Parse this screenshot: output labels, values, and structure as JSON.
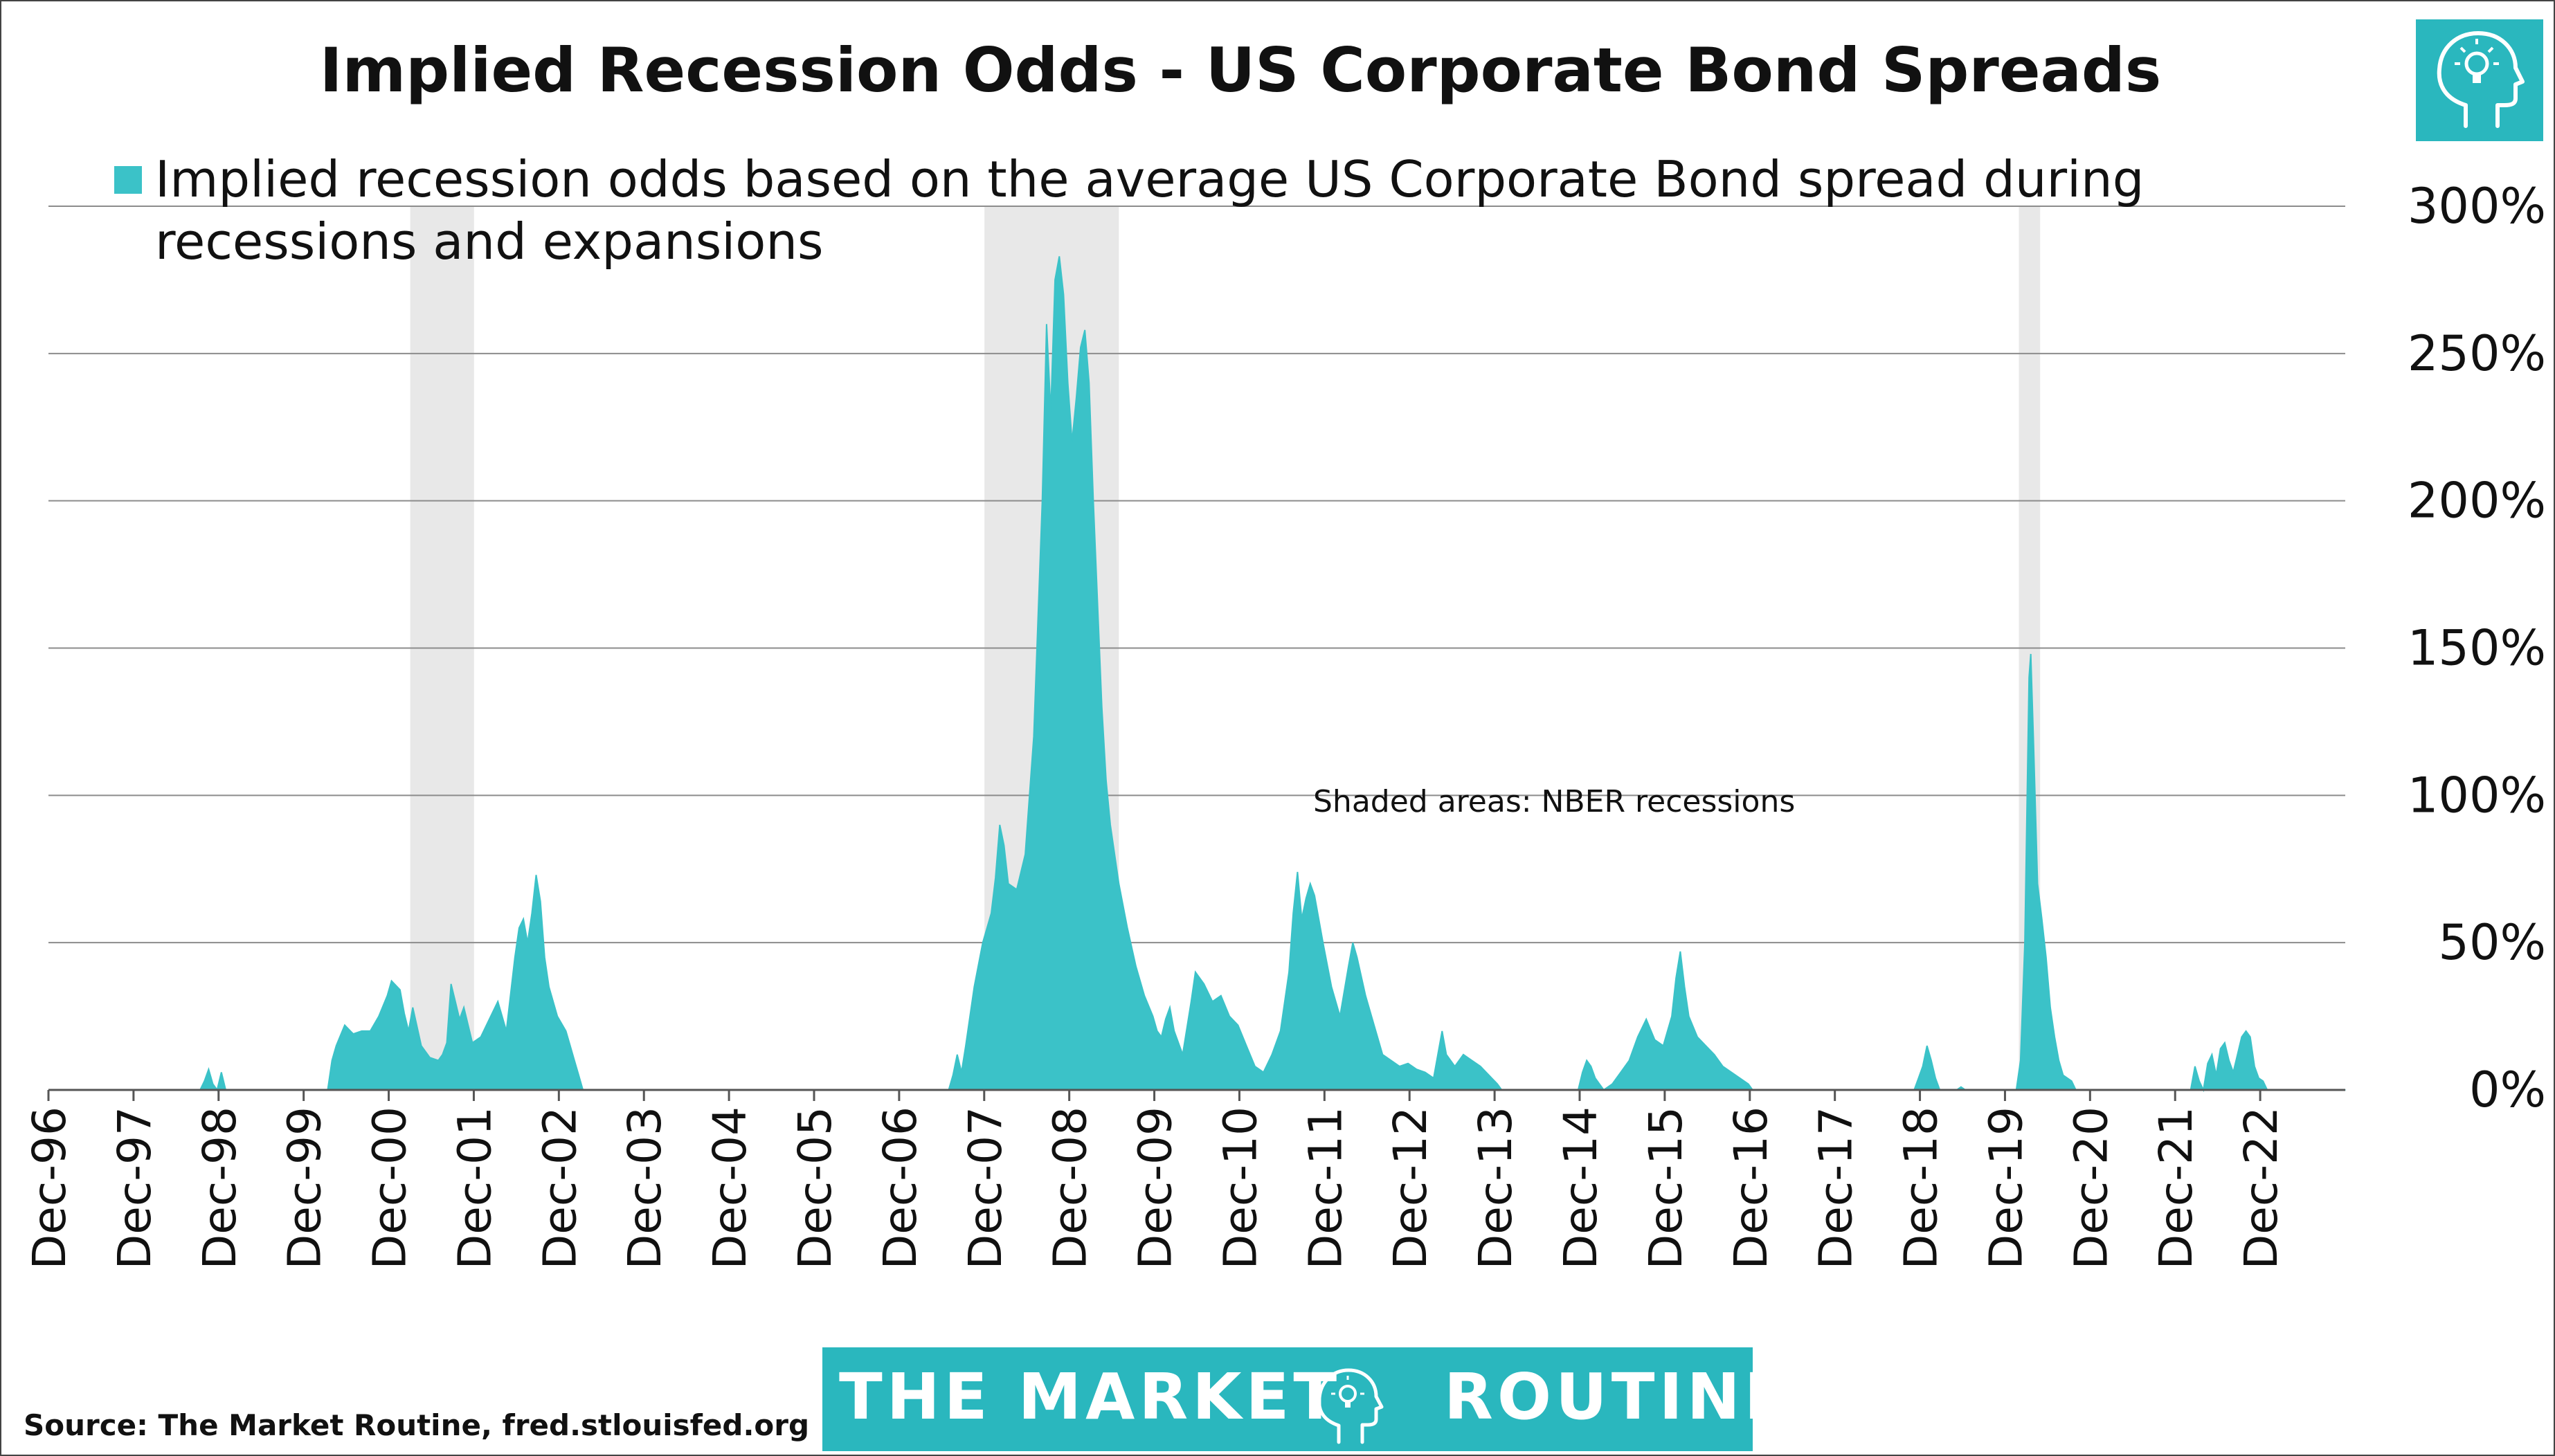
{
  "colors": {
    "series": "#3bc2c8",
    "recession": "#e8e8e8",
    "grid": "#8c8c8c",
    "brand_bg": "#2ab7be",
    "text": "#111111"
  },
  "icons": {
    "corner_logo": "lightbulb-head-icon",
    "brand_logo": "lightbulb-head-icon"
  },
  "footer": {
    "source": "Source: The Market Routine, fred.stlouisfed.org",
    "brand_left": "THE MARKET",
    "brand_right": "ROUTINE"
  },
  "chart_data": {
    "type": "area",
    "title": "Implied Recession Odds - US Corporate Bond Spreads",
    "legend": {
      "label_line1": "Implied recession odds based on the average US Corporate Bond spread during",
      "label_line2": "recessions and expansions",
      "placement": "top-left"
    },
    "annotation": "Shaded areas: NBER recessions",
    "y_axis": {
      "position": "right",
      "ylim": [
        0,
        300
      ],
      "ticks": [
        0,
        50,
        100,
        150,
        200,
        250,
        300
      ],
      "tick_labels": [
        "0%",
        "50%",
        "100%",
        "150%",
        "200%",
        "250%",
        "300%"
      ],
      "grid": true
    },
    "x_axis": {
      "xlim": [
        1996.917,
        2023.917
      ],
      "tick_positions": [
        1996.917,
        1997.917,
        1998.917,
        1999.917,
        2000.917,
        2001.917,
        2002.917,
        2003.917,
        2004.917,
        2005.917,
        2006.917,
        2007.917,
        2008.917,
        2009.917,
        2010.917,
        2011.917,
        2012.917,
        2013.917,
        2014.917,
        2015.917,
        2016.917,
        2017.917,
        2018.917,
        2019.917,
        2020.917,
        2021.917,
        2022.917
      ],
      "tick_labels": [
        "Dec-96",
        "Dec-97",
        "Dec-98",
        "Dec-99",
        "Dec-00",
        "Dec-01",
        "Dec-02",
        "Dec-03",
        "Dec-04",
        "Dec-05",
        "Dec-06",
        "Dec-07",
        "Dec-08",
        "Dec-09",
        "Dec-10",
        "Dec-11",
        "Dec-12",
        "Dec-13",
        "Dec-14",
        "Dec-15",
        "Dec-16",
        "Dec-17",
        "Dec-18",
        "Dec-19",
        "Dec-20",
        "Dec-21",
        "Dec-22"
      ]
    },
    "recessions": [
      {
        "start": 2001.17,
        "end": 2001.92
      },
      {
        "start": 2007.92,
        "end": 2009.5
      },
      {
        "start": 2020.08,
        "end": 2020.33
      }
    ],
    "series": [
      {
        "values": [
          [
            1996.92,
            0
          ],
          [
            1998.7,
            0
          ],
          [
            1998.75,
            3
          ],
          [
            1998.8,
            7
          ],
          [
            1998.85,
            2
          ],
          [
            1998.9,
            0
          ],
          [
            1998.95,
            6
          ],
          [
            1999.0,
            0
          ],
          [
            2000.2,
            0
          ],
          [
            2000.25,
            10
          ],
          [
            2000.3,
            15
          ],
          [
            2000.4,
            22
          ],
          [
            2000.5,
            19
          ],
          [
            2000.6,
            20
          ],
          [
            2000.7,
            20
          ],
          [
            2000.8,
            25
          ],
          [
            2000.9,
            32
          ],
          [
            2000.95,
            37
          ],
          [
            2001.05,
            34
          ],
          [
            2001.1,
            26
          ],
          [
            2001.15,
            20
          ],
          [
            2001.2,
            28
          ],
          [
            2001.3,
            15
          ],
          [
            2001.4,
            11
          ],
          [
            2001.5,
            10
          ],
          [
            2001.55,
            12
          ],
          [
            2001.6,
            16
          ],
          [
            2001.65,
            36
          ],
          [
            2001.7,
            30
          ],
          [
            2001.75,
            24
          ],
          [
            2001.8,
            28
          ],
          [
            2001.9,
            16
          ],
          [
            2002.0,
            18
          ],
          [
            2002.1,
            24
          ],
          [
            2002.2,
            30
          ],
          [
            2002.3,
            20
          ],
          [
            2002.4,
            45
          ],
          [
            2002.45,
            55
          ],
          [
            2002.5,
            58
          ],
          [
            2002.55,
            50
          ],
          [
            2002.6,
            60
          ],
          [
            2002.65,
            73
          ],
          [
            2002.7,
            64
          ],
          [
            2002.75,
            45
          ],
          [
            2002.8,
            35
          ],
          [
            2002.9,
            25
          ],
          [
            2003.0,
            20
          ],
          [
            2003.05,
            15
          ],
          [
            2003.1,
            10
          ],
          [
            2003.15,
            5
          ],
          [
            2003.2,
            0
          ],
          [
            2007.5,
            0
          ],
          [
            2007.55,
            5
          ],
          [
            2007.6,
            12
          ],
          [
            2007.65,
            6
          ],
          [
            2007.7,
            15
          ],
          [
            2007.8,
            35
          ],
          [
            2007.9,
            50
          ],
          [
            2008.0,
            60
          ],
          [
            2008.05,
            72
          ],
          [
            2008.1,
            90
          ],
          [
            2008.15,
            83
          ],
          [
            2008.2,
            70
          ],
          [
            2008.3,
            68
          ],
          [
            2008.4,
            80
          ],
          [
            2008.5,
            120
          ],
          [
            2008.6,
            200
          ],
          [
            2008.65,
            260
          ],
          [
            2008.7,
            230
          ],
          [
            2008.75,
            275
          ],
          [
            2008.8,
            283
          ],
          [
            2008.85,
            270
          ],
          [
            2008.9,
            240
          ],
          [
            2008.95,
            220
          ],
          [
            2009.0,
            235
          ],
          [
            2009.05,
            252
          ],
          [
            2009.1,
            258
          ],
          [
            2009.15,
            240
          ],
          [
            2009.2,
            200
          ],
          [
            2009.3,
            130
          ],
          [
            2009.35,
            105
          ],
          [
            2009.4,
            90
          ],
          [
            2009.5,
            70
          ],
          [
            2009.6,
            55
          ],
          [
            2009.7,
            42
          ],
          [
            2009.8,
            32
          ],
          [
            2009.9,
            25
          ],
          [
            2009.95,
            20
          ],
          [
            2010.0,
            18
          ],
          [
            2010.05,
            24
          ],
          [
            2010.1,
            28
          ],
          [
            2010.15,
            20
          ],
          [
            2010.25,
            12
          ],
          [
            2010.35,
            30
          ],
          [
            2010.4,
            40
          ],
          [
            2010.5,
            36
          ],
          [
            2010.6,
            30
          ],
          [
            2010.7,
            32
          ],
          [
            2010.8,
            25
          ],
          [
            2010.9,
            22
          ],
          [
            2011.0,
            15
          ],
          [
            2011.1,
            8
          ],
          [
            2011.2,
            6
          ],
          [
            2011.3,
            12
          ],
          [
            2011.4,
            20
          ],
          [
            2011.5,
            40
          ],
          [
            2011.55,
            60
          ],
          [
            2011.6,
            74
          ],
          [
            2011.65,
            58
          ],
          [
            2011.7,
            65
          ],
          [
            2011.75,
            70
          ],
          [
            2011.8,
            66
          ],
          [
            2011.9,
            50
          ],
          [
            2012.0,
            35
          ],
          [
            2012.1,
            25
          ],
          [
            2012.2,
            42
          ],
          [
            2012.25,
            50
          ],
          [
            2012.3,
            45
          ],
          [
            2012.4,
            32
          ],
          [
            2012.5,
            22
          ],
          [
            2012.6,
            12
          ],
          [
            2012.7,
            10
          ],
          [
            2012.8,
            8
          ],
          [
            2012.9,
            9
          ],
          [
            2013.0,
            7
          ],
          [
            2013.1,
            6
          ],
          [
            2013.2,
            4
          ],
          [
            2013.3,
            20
          ],
          [
            2013.35,
            12
          ],
          [
            2013.45,
            8
          ],
          [
            2013.55,
            12
          ],
          [
            2013.65,
            10
          ],
          [
            2013.75,
            8
          ],
          [
            2013.85,
            5
          ],
          [
            2013.95,
            2
          ],
          [
            2014.0,
            0
          ],
          [
            2014.9,
            0
          ],
          [
            2014.95,
            6
          ],
          [
            2015.0,
            10
          ],
          [
            2015.05,
            8
          ],
          [
            2015.1,
            4
          ],
          [
            2015.15,
            2
          ],
          [
            2015.2,
            0
          ],
          [
            2015.3,
            2
          ],
          [
            2015.4,
            6
          ],
          [
            2015.5,
            10
          ],
          [
            2015.6,
            18
          ],
          [
            2015.7,
            24
          ],
          [
            2015.8,
            17
          ],
          [
            2015.9,
            15
          ],
          [
            2016.0,
            25
          ],
          [
            2016.05,
            38
          ],
          [
            2016.1,
            47
          ],
          [
            2016.15,
            35
          ],
          [
            2016.2,
            25
          ],
          [
            2016.3,
            18
          ],
          [
            2016.4,
            15
          ],
          [
            2016.5,
            12
          ],
          [
            2016.6,
            8
          ],
          [
            2016.7,
            6
          ],
          [
            2016.8,
            4
          ],
          [
            2016.9,
            2
          ],
          [
            2016.95,
            0
          ],
          [
            2018.85,
            0
          ],
          [
            2018.9,
            4
          ],
          [
            2018.95,
            8
          ],
          [
            2019.0,
            15
          ],
          [
            2019.05,
            10
          ],
          [
            2019.1,
            4
          ],
          [
            2019.15,
            0
          ],
          [
            2019.35,
            0
          ],
          [
            2019.4,
            1
          ],
          [
            2019.45,
            0
          ],
          [
            2020.05,
            0
          ],
          [
            2020.1,
            10
          ],
          [
            2020.15,
            50
          ],
          [
            2020.2,
            140
          ],
          [
            2020.22,
            148
          ],
          [
            2020.25,
            120
          ],
          [
            2020.3,
            70
          ],
          [
            2020.35,
            58
          ],
          [
            2020.4,
            45
          ],
          [
            2020.45,
            28
          ],
          [
            2020.5,
            18
          ],
          [
            2020.55,
            10
          ],
          [
            2020.6,
            5
          ],
          [
            2020.7,
            3
          ],
          [
            2020.75,
            0
          ],
          [
            2022.1,
            0
          ],
          [
            2022.15,
            8
          ],
          [
            2022.2,
            3
          ],
          [
            2022.25,
            0
          ],
          [
            2022.3,
            9
          ],
          [
            2022.35,
            12
          ],
          [
            2022.4,
            5
          ],
          [
            2022.45,
            14
          ],
          [
            2022.5,
            16
          ],
          [
            2022.55,
            10
          ],
          [
            2022.6,
            6
          ],
          [
            2022.7,
            18
          ],
          [
            2022.75,
            20
          ],
          [
            2022.8,
            18
          ],
          [
            2022.85,
            8
          ],
          [
            2022.9,
            4
          ],
          [
            2022.95,
            3
          ],
          [
            2023.0,
            0
          ],
          [
            2023.92,
            0
          ]
        ]
      }
    ]
  }
}
